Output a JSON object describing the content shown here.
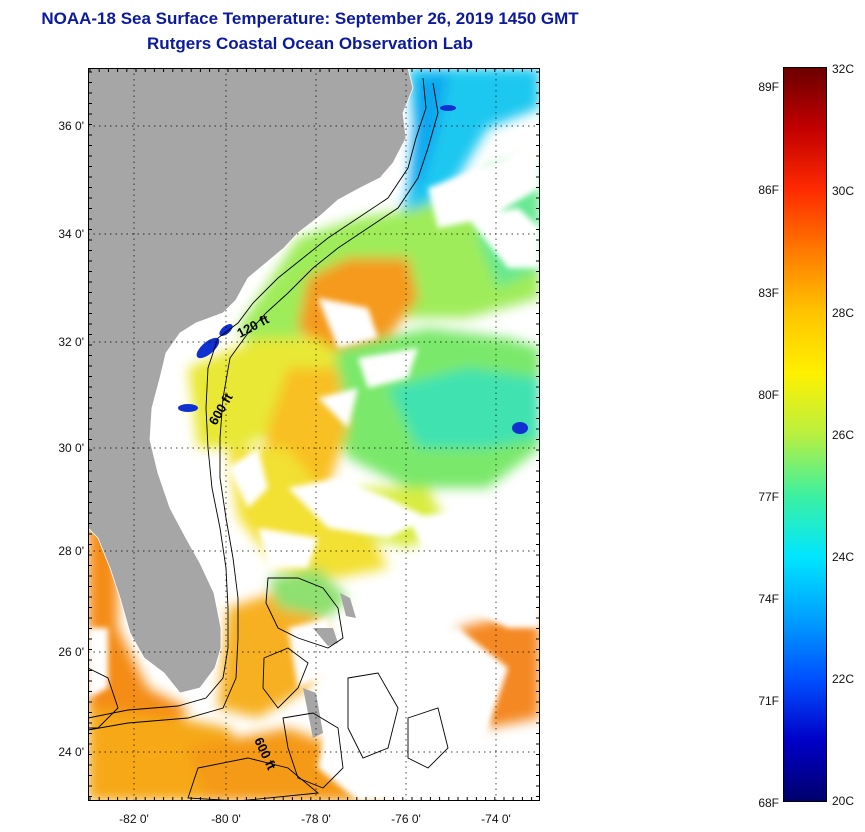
{
  "header": {
    "title": "NOAA-18 Sea Surface Temperature:  September 26, 2019 1450 GMT",
    "subtitle": "Rutgers Coastal Ocean Observation Lab"
  },
  "map": {
    "lat_labels": [
      "36 0'",
      "34 0'",
      "32 0'",
      "30 0'",
      "28 0'",
      "26 0'",
      "24 0'"
    ],
    "lon_labels": [
      "-82 0'",
      "-80 0'",
      "-78 0'",
      "-76 0'",
      "-74 0'"
    ],
    "contour_labels": [
      "120 ft",
      "600 ft",
      "600 ft"
    ],
    "colors": {
      "land": "#a6a6a6",
      "cloud": "#ffffff",
      "frame": "#000000"
    }
  },
  "colorbar": {
    "fahrenheit": [
      "89F",
      "86F",
      "83F",
      "80F",
      "77F",
      "74F",
      "71F",
      "68F"
    ],
    "celsius": [
      "32C",
      "30C",
      "28C",
      "26C",
      "24C",
      "22C",
      "20C"
    ],
    "stops": [
      "#6b0000",
      "#c20000",
      "#ff2a00",
      "#ff7a00",
      "#ffc400",
      "#fff000",
      "#b8f040",
      "#3cf0a0",
      "#00e6ff",
      "#00a0ff",
      "#0050ff",
      "#0000c8",
      "#00006b"
    ]
  }
}
